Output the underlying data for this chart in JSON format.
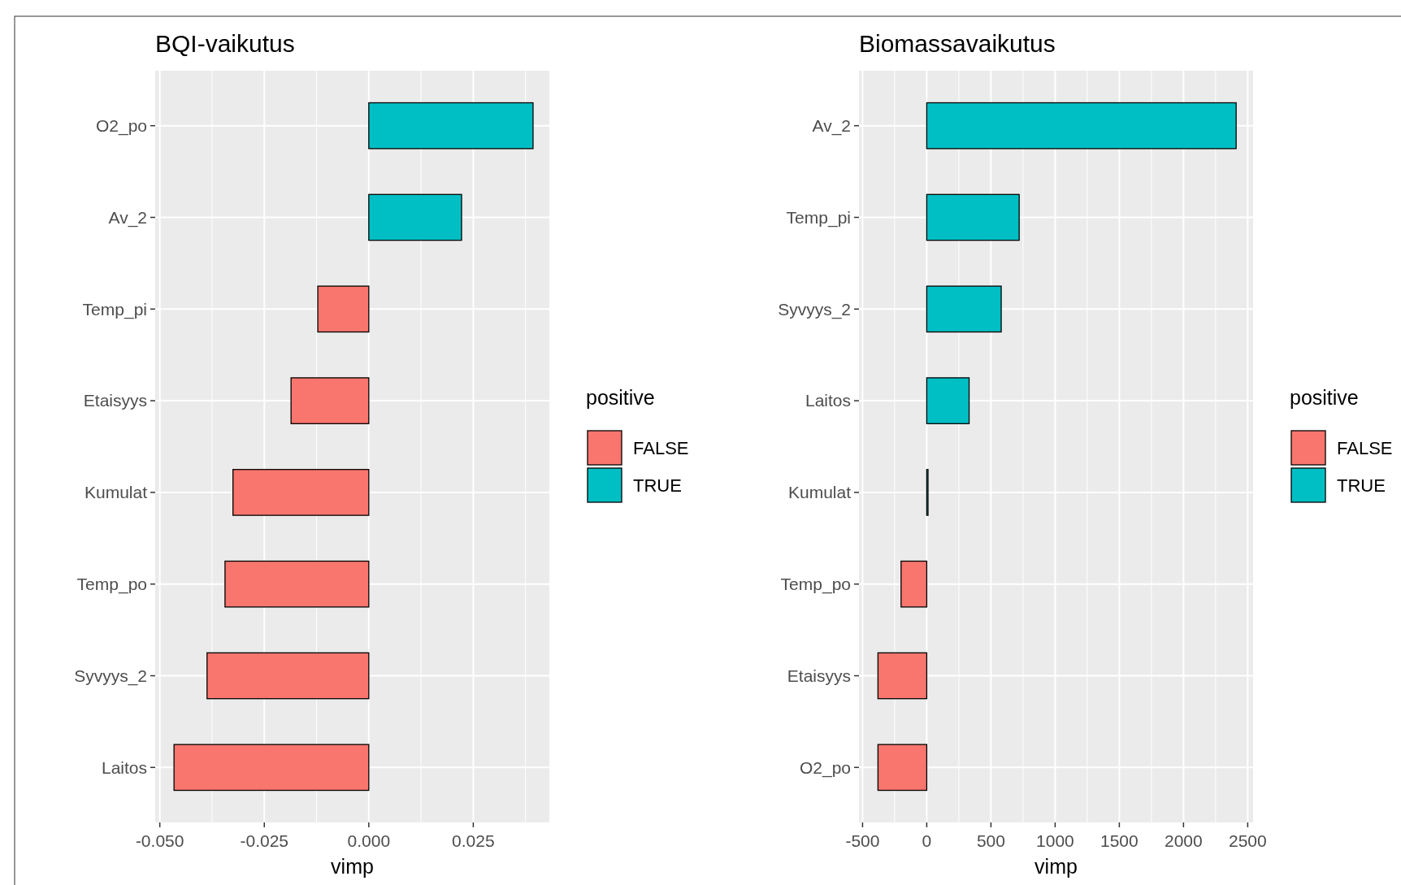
{
  "chart_data": [
    {
      "type": "bar",
      "orientation": "horizontal",
      "title": "BQI-vaikutus",
      "xlabel": "vimp",
      "legend_title": "positive",
      "legend": "right",
      "grid": true,
      "categories": [
        "O2_po",
        "Av_2",
        "Temp_pi",
        "Etaisyys",
        "Kumulat",
        "Temp_po",
        "Syvyys_2",
        "Laitos"
      ],
      "series": [
        {
          "name": "FALSE",
          "color": "#f8766d",
          "values": [
            null,
            null,
            -0.0122,
            -0.0186,
            -0.0325,
            -0.0344,
            -0.0387,
            -0.0466
          ]
        },
        {
          "name": "TRUE",
          "color": "#00bfc4",
          "values": [
            0.0393,
            0.0222,
            null,
            null,
            null,
            null,
            null,
            null
          ]
        }
      ],
      "xlim": [
        -0.0511,
        0.0432
      ],
      "xticks": [
        {
          "value": -0.05,
          "label": "-0.050"
        },
        {
          "value": -0.025,
          "label": "-0.025"
        },
        {
          "value": 0,
          "label": "0.000"
        },
        0.025
      ]
    },
    {
      "type": "bar",
      "orientation": "horizontal",
      "title": "Biomassavaikutus",
      "xlabel": "vimp",
      "legend_title": "positive",
      "legend": "right",
      "grid": true,
      "categories": [
        "Av_2",
        "Temp_pi",
        "Syvyys_2",
        "Laitos",
        "Kumulat",
        "Temp_po",
        "Etaisyys",
        "O2_po"
      ],
      "series": [
        {
          "name": "FALSE",
          "color": "#f8766d",
          "values": [
            null,
            null,
            null,
            null,
            null,
            -200,
            -380,
            -380
          ]
        },
        {
          "name": "TRUE",
          "color": "#00bfc4",
          "values": [
            2410,
            720,
            580,
            330,
            10,
            null,
            null,
            null
          ]
        }
      ],
      "xlim": [
        -528,
        2542
      ],
      "xticks": [
        -500,
        0,
        500,
        1000,
        1500,
        2000,
        2500
      ]
    }
  ]
}
